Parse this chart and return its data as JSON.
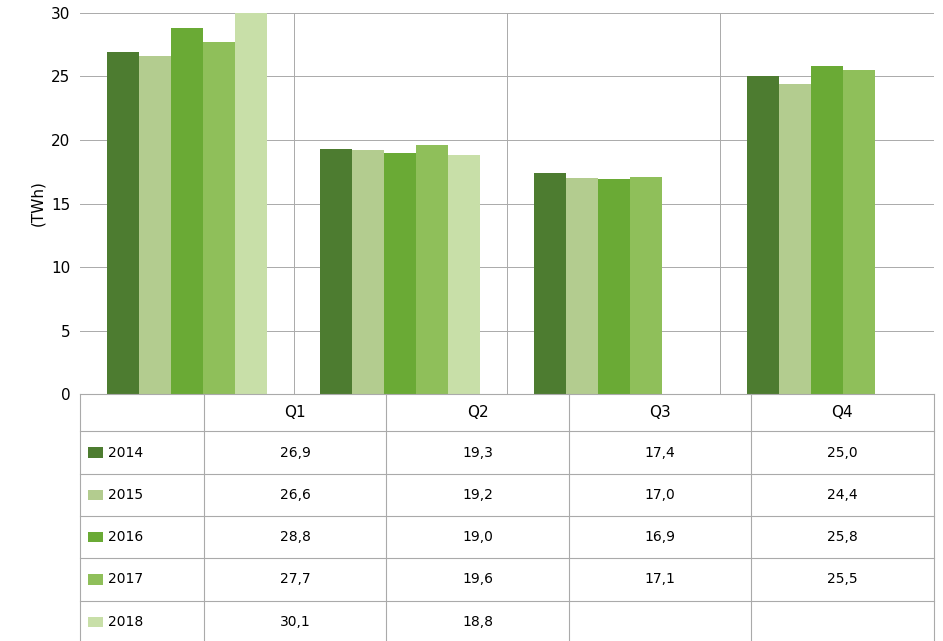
{
  "categories": [
    "Q1",
    "Q2",
    "Q3",
    "Q4"
  ],
  "years": [
    "2014",
    "2015",
    "2016",
    "2017",
    "2018"
  ],
  "colors": [
    "#4d7c30",
    "#b3cc8f",
    "#6aaa35",
    "#8fbf5a",
    "#c8dfa8"
  ],
  "values": {
    "2014": [
      26.9,
      19.3,
      17.4,
      25.0
    ],
    "2015": [
      26.6,
      19.2,
      17.0,
      24.4
    ],
    "2016": [
      28.8,
      19.0,
      16.9,
      25.8
    ],
    "2017": [
      27.7,
      19.6,
      17.1,
      25.5
    ],
    "2018": [
      30.1,
      18.8,
      null,
      null
    ]
  },
  "ylabel": "(TWh)",
  "ylim": [
    0,
    30
  ],
  "yticks": [
    0,
    5,
    10,
    15,
    20,
    25,
    30
  ],
  "table_data": {
    "2014": [
      "26,9",
      "19,3",
      "17,4",
      "25,0"
    ],
    "2015": [
      "26,6",
      "19,2",
      "17,0",
      "24,4"
    ],
    "2016": [
      "28,8",
      "19,0",
      "16,9",
      "25,8"
    ],
    "2017": [
      "27,7",
      "19,6",
      "17,1",
      "25,5"
    ],
    "2018": [
      "30,1",
      "18,8",
      "",
      ""
    ]
  },
  "bar_width": 0.15,
  "figsize": [
    9.43,
    6.41
  ],
  "dpi": 100
}
